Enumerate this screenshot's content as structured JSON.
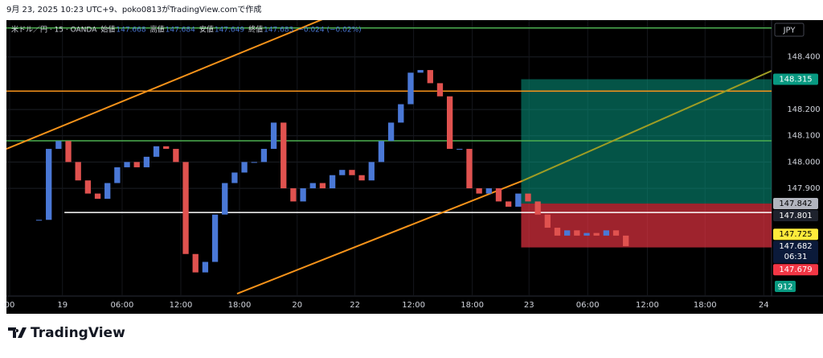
{
  "header": {
    "created": "9月 23, 2025 10:23 UTC+9、poko0813がTradingView.comで作成"
  },
  "chart_data": {
    "type": "candlestick",
    "legend": {
      "symbol": "米ドル／円 · 15 · OANDA",
      "open_label": "始値",
      "open": 147.668,
      "high_label": "高値",
      "high": 147.684,
      "low_label": "安値",
      "low": 147.649,
      "close_label": "終値",
      "close": 147.683,
      "change": "−0.024 (−0.02%)"
    },
    "currency": "JPY",
    "x": [
      3,
      4,
      5,
      6,
      7,
      8,
      9,
      10,
      11,
      12,
      13,
      14,
      15,
      16,
      17,
      18,
      19,
      20,
      21,
      22,
      23,
      24,
      25,
      26,
      27,
      28,
      29,
      30,
      31,
      32,
      33,
      34,
      35,
      36,
      37,
      38,
      39,
      40,
      41,
      42,
      43,
      44,
      45,
      46,
      47,
      48,
      49,
      50,
      51,
      52,
      53,
      54,
      55,
      56,
      57,
      58,
      59,
      60,
      61,
      62,
      63
    ],
    "values": [
      147.78,
      148.05,
      148.08,
      148.0,
      147.93,
      147.88,
      147.86,
      147.92,
      147.98,
      148.0,
      147.98,
      148.02,
      148.06,
      148.05,
      148.0,
      147.65,
      147.58,
      147.62,
      147.8,
      147.92,
      147.96,
      148.0,
      148.0,
      148.05,
      148.15,
      147.9,
      147.85,
      147.9,
      147.92,
      147.9,
      147.95,
      147.97,
      147.95,
      147.93,
      148.0,
      148.08,
      148.15,
      148.22,
      148.34,
      148.35,
      148.3,
      148.25,
      148.05,
      148.05,
      147.9,
      147.88,
      147.9,
      147.85,
      147.83,
      147.88,
      147.85,
      147.8,
      147.75,
      147.72,
      147.74,
      147.72,
      147.73,
      147.72,
      147.74,
      147.72,
      147.68
    ],
    "up_color": "#4a78d6",
    "down_color": "#e0524f",
    "xlim": [
      -0.33,
      77.9
    ],
    "xticks": [
      {
        "value": 0,
        "label": "00"
      },
      {
        "value": 5.4,
        "label": "19"
      },
      {
        "value": 11.5,
        "label": "06:00"
      },
      {
        "value": 17.5,
        "label": "12:00"
      },
      {
        "value": 23.5,
        "label": "18:00"
      },
      {
        "value": 29.4,
        "label": "20"
      },
      {
        "value": 35.3,
        "label": "22"
      },
      {
        "value": 41.3,
        "label": "12:00"
      },
      {
        "value": 47.3,
        "label": "18:00"
      },
      {
        "value": 53.1,
        "label": "23"
      },
      {
        "value": 59.1,
        "label": "06:00"
      },
      {
        "value": 65.2,
        "label": "12:00"
      },
      {
        "value": 71.1,
        "label": "18:00"
      },
      {
        "value": 77.1,
        "label": "24"
      }
    ],
    "ylim": [
      147.49,
      148.54
    ],
    "yticks": [
      {
        "value": 147.9,
        "label": "147.900"
      },
      {
        "value": 148.0,
        "label": "148.000"
      },
      {
        "value": 148.1,
        "label": "148.100"
      },
      {
        "value": 148.2,
        "label": "148.200"
      },
      {
        "value": 148.4,
        "label": "148.400"
      }
    ],
    "grid": true,
    "levels": [
      {
        "value": 148.51,
        "color": "#4caf50",
        "from": -0.33
      },
      {
        "value": 148.27,
        "color": "#f7931a",
        "from": -0.33
      },
      {
        "value": 148.081,
        "color": "#4caf50",
        "from": -0.33
      },
      {
        "value": 147.808,
        "color": "#ffffff",
        "from": 5.6
      }
    ],
    "trendlines": [
      {
        "x": [
          -0.33,
          33.1
        ],
        "y": [
          148.05,
          148.56
        ],
        "color": "#f7931a"
      },
      {
        "x": [
          23.25,
          52.4
        ],
        "y": [
          147.499,
          147.928
        ],
        "color": "#f7931a"
      },
      {
        "x": [
          52.4,
          77.9
        ],
        "y": [
          147.928,
          148.347
        ],
        "color": "#9e9d24"
      }
    ],
    "position": {
      "from": 52.3,
      "target": 148.315,
      "entry": 147.842,
      "stop": 147.675
    },
    "price_tags": [
      {
        "value": 148.315,
        "label": "148.315",
        "bg": "#089981",
        "fg": "#ffffff"
      },
      {
        "value": 147.842,
        "label": "147.842",
        "bg": "#b2b5be",
        "fg": "#000000"
      },
      {
        "value": 147.801,
        "label": "147.801",
        "bg": "#1e222d",
        "fg": "#ffffff"
      },
      {
        "value": 147.725,
        "label": "147.725",
        "bg": "#ffeb3b",
        "fg": "#000000"
      },
      {
        "value": 147.682,
        "label": "147.682",
        "bg": "#0b1a3a",
        "fg": "#ffffff",
        "sub": "06:31"
      },
      {
        "value": 147.679,
        "label": "147.679",
        "bg": "#f23645",
        "fg": "#ffffff"
      }
    ],
    "volume_label": 912,
    "brand": "TradingView"
  }
}
